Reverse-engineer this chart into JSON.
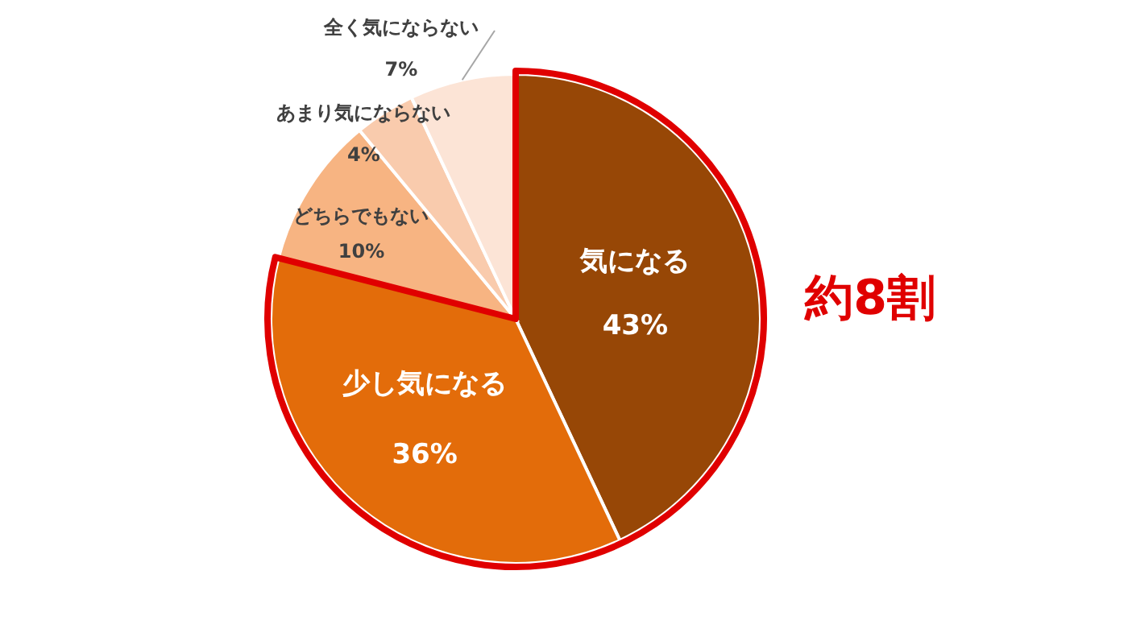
{
  "chart_data": {
    "type": "pie",
    "categories": [
      "気になる",
      "少し気になる",
      "どちらでもない",
      "あまり気にならない",
      "全く気にならない"
    ],
    "values": [
      43,
      36,
      10,
      4,
      7
    ],
    "colors": [
      "#974706",
      "#e36c0a",
      "#f7b482",
      "#f9cbad",
      "#fce4d6"
    ],
    "value_labels": [
      "43%",
      "36%",
      "10%",
      "4%",
      "7%"
    ],
    "annotations": [
      "約8割"
    ]
  }
}
